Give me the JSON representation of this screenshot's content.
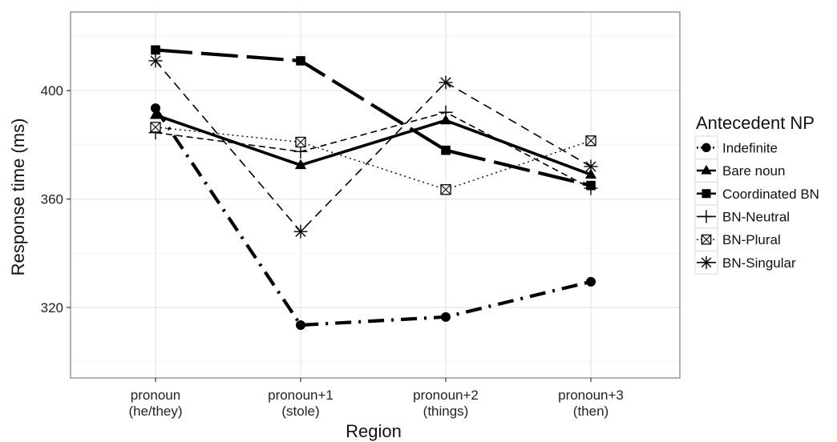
{
  "chart_data": {
    "type": "line",
    "xlabel": "Region",
    "ylabel": "Response time (ms)",
    "categories": [
      [
        "pronoun",
        "(he/they)"
      ],
      [
        "pronoun+1",
        "(stole)"
      ],
      [
        "pronoun+2",
        "(things)"
      ],
      [
        "pronoun+3",
        "(then)"
      ]
    ],
    "ylim": [
      294,
      429
    ],
    "yticks": [
      320,
      360,
      400
    ],
    "grid": true,
    "legend": {
      "title": "Antecedent NP",
      "position": "right"
    },
    "series": [
      {
        "name": "Indefinite",
        "values": [
          393.5,
          313.5,
          316.5,
          329.5
        ]
      },
      {
        "name": "Bare noun",
        "values": [
          391,
          372.5,
          389,
          369
        ]
      },
      {
        "name": "Coordinated BN",
        "values": [
          415,
          411,
          378,
          365
        ]
      },
      {
        "name": "BN-Neutral",
        "values": [
          384.5,
          377.5,
          392,
          364
        ]
      },
      {
        "name": "BN-Plural",
        "values": [
          386.5,
          381,
          363.5,
          381.5
        ]
      },
      {
        "name": "BN-Singular",
        "values": [
          411,
          348,
          403,
          372
        ]
      }
    ]
  },
  "styles": {
    "colors": {
      "panel_bg": "#ffffff",
      "grid_major": "#e6e6e6",
      "grid_minor": "#f3f3f3",
      "border": "#7f7f7f",
      "ink": "#000000"
    },
    "series_icons": [
      "filled-circle",
      "filled-triangle",
      "filled-square",
      "plus",
      "boxed-x",
      "asterisk"
    ]
  }
}
